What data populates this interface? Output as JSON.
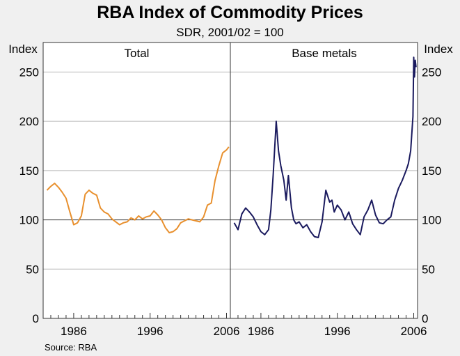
{
  "chart_data": {
    "type": "line",
    "title": "RBA Index of Commodity Prices",
    "subtitle": "SDR, 2001/02 = 100",
    "ylabel_left": "Index",
    "ylabel_right": "Index",
    "source": "Source: RBA",
    "ylim": [
      0,
      280
    ],
    "yticks": [
      "0",
      "50",
      "100",
      "150",
      "200",
      "250"
    ],
    "grid": true,
    "reference_line": 100,
    "panels": [
      {
        "title": "Total",
        "xlim": [
          1982.0,
          2006.5
        ],
        "xticks": [
          {
            "value": 1986,
            "label": "1986"
          },
          {
            "value": 1996,
            "label": "1996"
          },
          {
            "value": 2006,
            "label": "2006"
          }
        ],
        "series": [
          {
            "name": "Total",
            "color": "#e8902e",
            "x": [
              1982.5,
              1983.0,
              1983.5,
              1984.0,
              1984.5,
              1985.0,
              1985.5,
              1986.0,
              1986.5,
              1987.0,
              1987.5,
              1988.0,
              1988.5,
              1989.0,
              1989.5,
              1990.0,
              1990.5,
              1991.0,
              1991.5,
              1992.0,
              1992.5,
              1993.0,
              1993.5,
              1994.0,
              1994.5,
              1995.0,
              1995.5,
              1996.0,
              1996.5,
              1997.0,
              1997.5,
              1998.0,
              1998.5,
              1999.0,
              1999.5,
              2000.0,
              2000.5,
              2001.0,
              2001.5,
              2002.0,
              2002.5,
              2003.0,
              2003.5,
              2004.0,
              2004.5,
              2005.0,
              2005.5,
              2006.0,
              2006.3
            ],
            "values": [
              130,
              134,
              137,
              133,
              128,
              122,
              108,
              95,
              97,
              104,
              126,
              130,
              127,
              125,
              112,
              108,
              106,
              101,
              98,
              95,
              97,
              98,
              102,
              100,
              104,
              101,
              103,
              104,
              109,
              105,
              100,
              92,
              87,
              88,
              91,
              97,
              99,
              101,
              100,
              99,
              98,
              103,
              115,
              117,
              140,
              155,
              168,
              171,
              174
            ]
          }
        ]
      },
      {
        "title": "Base metals",
        "xlim": [
          1982.0,
          2006.5
        ],
        "xticks": [
          {
            "value": 1986,
            "label": "1986"
          },
          {
            "value": 1996,
            "label": "1996"
          },
          {
            "value": 2006,
            "label": "2006"
          }
        ],
        "series": [
          {
            "name": "Base metals",
            "color": "#1a1a5e",
            "x": [
              1982.5,
              1983.0,
              1983.5,
              1984.0,
              1984.5,
              1985.0,
              1985.5,
              1986.0,
              1986.5,
              1987.0,
              1987.3,
              1987.6,
              1988.0,
              1988.3,
              1988.6,
              1989.0,
              1989.3,
              1989.6,
              1990.0,
              1990.3,
              1990.6,
              1991.0,
              1991.5,
              1992.0,
              1992.5,
              1993.0,
              1993.5,
              1994.0,
              1994.5,
              1995.0,
              1995.3,
              1995.6,
              1996.0,
              1996.5,
              1997.0,
              1997.5,
              1998.0,
              1998.5,
              1999.0,
              1999.5,
              2000.0,
              2000.5,
              2001.0,
              2001.5,
              2002.0,
              2002.5,
              2003.0,
              2003.5,
              2004.0,
              2004.5,
              2005.0,
              2005.3,
              2005.6,
              2005.9,
              2006.0,
              2006.1,
              2006.2,
              2006.3
            ],
            "values": [
              97,
              90,
              106,
              112,
              108,
              103,
              95,
              88,
              85,
              90,
              110,
              145,
              200,
              170,
              155,
              140,
              120,
              145,
              112,
              100,
              96,
              98,
              92,
              95,
              88,
              83,
              82,
              98,
              130,
              118,
              120,
              108,
              115,
              110,
              100,
              108,
              96,
              90,
              85,
              103,
              110,
              120,
              105,
              97,
              96,
              100,
              103,
              120,
              132,
              140,
              150,
              157,
              170,
              205,
              265,
              245,
              262,
              255
            ]
          }
        ]
      }
    ]
  }
}
